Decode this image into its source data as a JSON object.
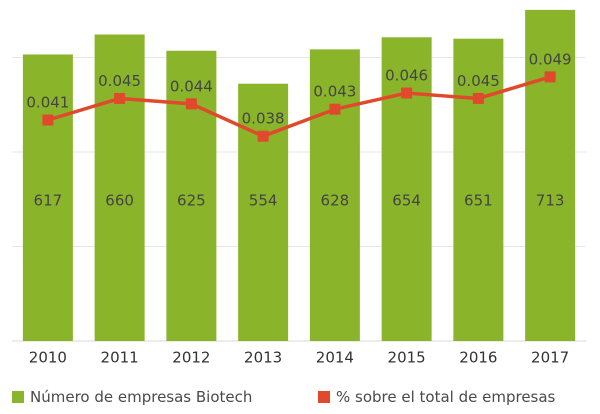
{
  "chart_data": {
    "type": "bar+line",
    "title": "",
    "categories": [
      "2010",
      "2011",
      "2012",
      "2013",
      "2014",
      "2015",
      "2016",
      "2017"
    ],
    "series": [
      {
        "name": "Número de empresas Biotech",
        "type": "bar",
        "axis": "left",
        "color": "#8ab52a",
        "values": [
          617,
          660,
          625,
          554,
          628,
          654,
          651,
          713
        ]
      },
      {
        "name": "% sobre el total de empresas",
        "type": "line",
        "axis": "right",
        "color": "#e0492c",
        "values": [
          0.041,
          0.045,
          0.044,
          0.038,
          0.043,
          0.046,
          0.045,
          0.049
        ],
        "labels": [
          "0.041",
          "0.045",
          "0.044",
          "0.038",
          "0.043",
          "0.046",
          "0.045",
          "0.049"
        ]
      }
    ],
    "ylim_left": [
      0,
      720
    ],
    "ylim_right": [
      0,
      0.056
    ],
    "grid": true,
    "legend_position": "bottom"
  }
}
